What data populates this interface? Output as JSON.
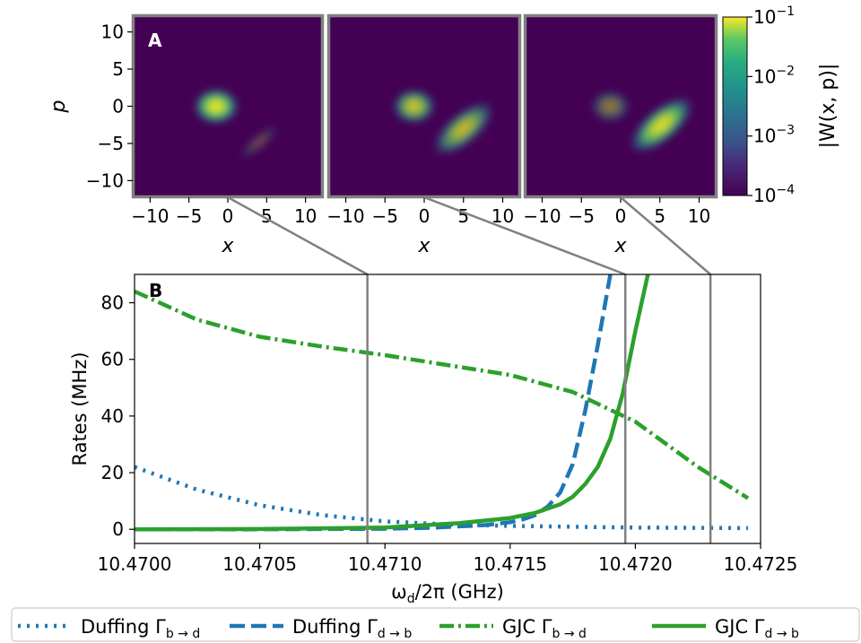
{
  "chart_data": [
    {
      "type": "heatmap",
      "panel_label": "A",
      "xlabel": "x",
      "ylabel": "p",
      "xticks": [
        -10,
        -5,
        0,
        5,
        10
      ],
      "yticks": [
        10,
        5,
        0,
        -5,
        -10
      ],
      "xlim": [
        -12,
        12
      ],
      "ylim": [
        -12,
        12
      ],
      "colorbar": {
        "label": "|W(x, p)|",
        "scale": "log",
        "range": [
          0.0001,
          0.1
        ],
        "ticks": [
          {
            "value": 0.1,
            "mantissa": "10",
            "exp": "−1"
          },
          {
            "value": 0.01,
            "mantissa": "10",
            "exp": "−2"
          },
          {
            "value": 0.001,
            "mantissa": "10",
            "exp": "−3"
          },
          {
            "value": 0.0001,
            "mantissa": "10",
            "exp": "−4"
          }
        ]
      },
      "panels": [
        {
          "drive_frequency": 10.47093,
          "blobs": [
            {
              "x": -1.5,
              "y": 0,
              "rx": 3.0,
              "ry": 2.5,
              "rot": 0,
              "level": 1.0
            },
            {
              "x": 4.0,
              "y": -4.8,
              "rx": 3.2,
              "ry": 1.0,
              "rot": -40,
              "level": 0.3
            }
          ]
        },
        {
          "drive_frequency": 10.47196,
          "blobs": [
            {
              "x": -1.3,
              "y": 0,
              "rx": 2.8,
              "ry": 2.4,
              "rot": 0,
              "level": 0.85
            },
            {
              "x": 5.0,
              "y": -3.0,
              "rx": 4.8,
              "ry": 2.2,
              "rot": -40,
              "level": 0.8
            }
          ]
        },
        {
          "drive_frequency": 10.4723,
          "blobs": [
            {
              "x": -1.3,
              "y": 0,
              "rx": 2.6,
              "ry": 2.2,
              "rot": 0,
              "level": 0.5
            },
            {
              "x": 5.2,
              "y": -2.5,
              "rx": 5.0,
              "ry": 2.3,
              "rot": -40,
              "level": 0.95
            }
          ]
        }
      ]
    },
    {
      "type": "line",
      "panel_label": "B",
      "xlabel": "ω",
      "xlabel_sub": "d",
      "xlabel_rest": "/2π (GHz)",
      "ylabel": "Rates (MHz)",
      "xlim": [
        10.47,
        10.4725
      ],
      "ylim": [
        -5,
        90
      ],
      "xticks": [
        10.47,
        10.4705,
        10.471,
        10.4715,
        10.472,
        10.4725
      ],
      "xtick_labels": [
        "10.4700",
        "10.4705",
        "10.4710",
        "10.4715",
        "10.4720",
        "10.4725"
      ],
      "yticks": [
        0,
        20,
        40,
        60,
        80
      ],
      "vlines": [
        10.47093,
        10.47196,
        10.4723
      ],
      "series": [
        {
          "name": "Duffing",
          "sub": "b → d",
          "color": "#1f77b4",
          "dash": "3,7",
          "x": [
            10.47,
            10.47025,
            10.4705,
            10.47075,
            10.471,
            10.47125,
            10.4715,
            10.47175,
            10.472,
            10.47225,
            10.47245
          ],
          "y": [
            22,
            14,
            8.5,
            5,
            2.8,
            1.7,
            1.2,
            0.9,
            0.6,
            0.5,
            0.4
          ]
        },
        {
          "name": "Duffing",
          "sub": "d → b",
          "color": "#1f77b4",
          "dash": "17,7",
          "x": [
            10.47,
            10.4705,
            10.471,
            10.4712,
            10.4714,
            10.4715,
            10.47155,
            10.4716,
            10.47165,
            10.4717,
            10.47175,
            10.4718,
            10.47185,
            10.4719
          ],
          "y": [
            0,
            0,
            0.2,
            0.6,
            1.5,
            2.5,
            3.5,
            5,
            8,
            13,
            23,
            42,
            65,
            90
          ]
        },
        {
          "name": "GJC",
          "sub": "b → d",
          "color": "#2ca02c",
          "dash": "16,5,3,5",
          "x": [
            10.47,
            10.47025,
            10.4705,
            10.47075,
            10.471,
            10.47125,
            10.4715,
            10.47175,
            10.472,
            10.47225,
            10.47245
          ],
          "y": [
            84,
            74,
            68,
            64.5,
            61.5,
            58,
            54.5,
            48.5,
            38,
            22,
            11
          ]
        },
        {
          "name": "GJC",
          "sub": "d → b",
          "color": "#2ca02c",
          "dash": "",
          "x": [
            10.47,
            10.4705,
            10.471,
            10.4713,
            10.4715,
            10.4716,
            10.4717,
            10.47175,
            10.4718,
            10.47185,
            10.4719,
            10.47195,
            10.472,
            10.47205
          ],
          "y": [
            0,
            0.1,
            0.6,
            2.2,
            4,
            5.8,
            8.8,
            11.5,
            16,
            22,
            32,
            48,
            70,
            90
          ]
        }
      ]
    }
  ]
}
